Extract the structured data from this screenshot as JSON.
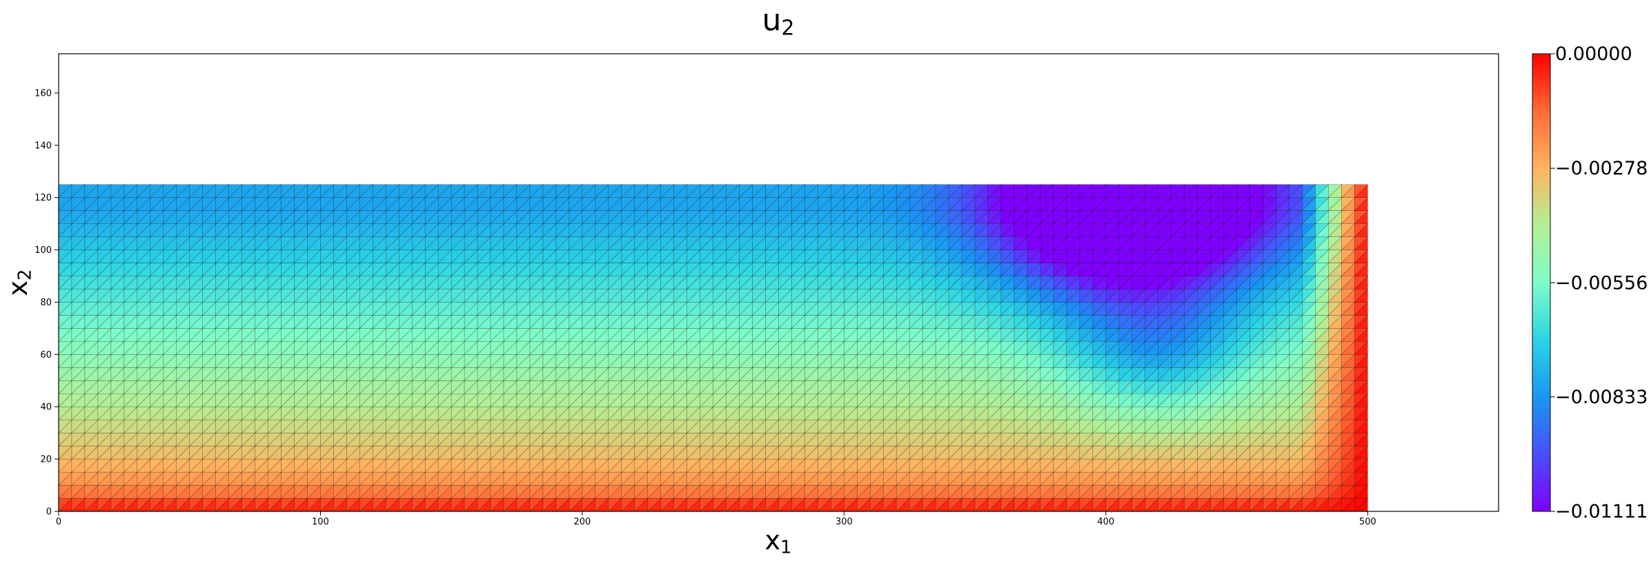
{
  "chart_data": {
    "type": "heatmap",
    "title": "u",
    "title_sub": "2",
    "xlabel": "x",
    "xlabel_sub": "1",
    "ylabel": "x",
    "ylabel_sub": "2",
    "xlim": [
      0,
      550
    ],
    "ylim": [
      0,
      175
    ],
    "xticks": [
      0,
      100,
      200,
      300,
      400,
      500
    ],
    "yticks": [
      0,
      20,
      40,
      60,
      80,
      100,
      120,
      140,
      160
    ],
    "domain": {
      "x": [
        0,
        500
      ],
      "y": [
        0,
        125
      ]
    },
    "mesh": {
      "nx": 100,
      "ny": 25,
      "element": "triangle"
    },
    "field_min": -0.01111,
    "field_max": 0.0,
    "peak": {
      "x": 410,
      "y": 118,
      "value": -0.01111
    },
    "colormap": "rainbow",
    "colorbar": {
      "ticks": [
        0.0,
        -0.00278,
        -0.00556,
        -0.00833,
        -0.01111
      ],
      "tick_labels": [
        "0.00000",
        "−0.00278",
        "−0.00556",
        "−0.00833",
        "−0.01111"
      ],
      "position": "right"
    },
    "grid": false
  }
}
